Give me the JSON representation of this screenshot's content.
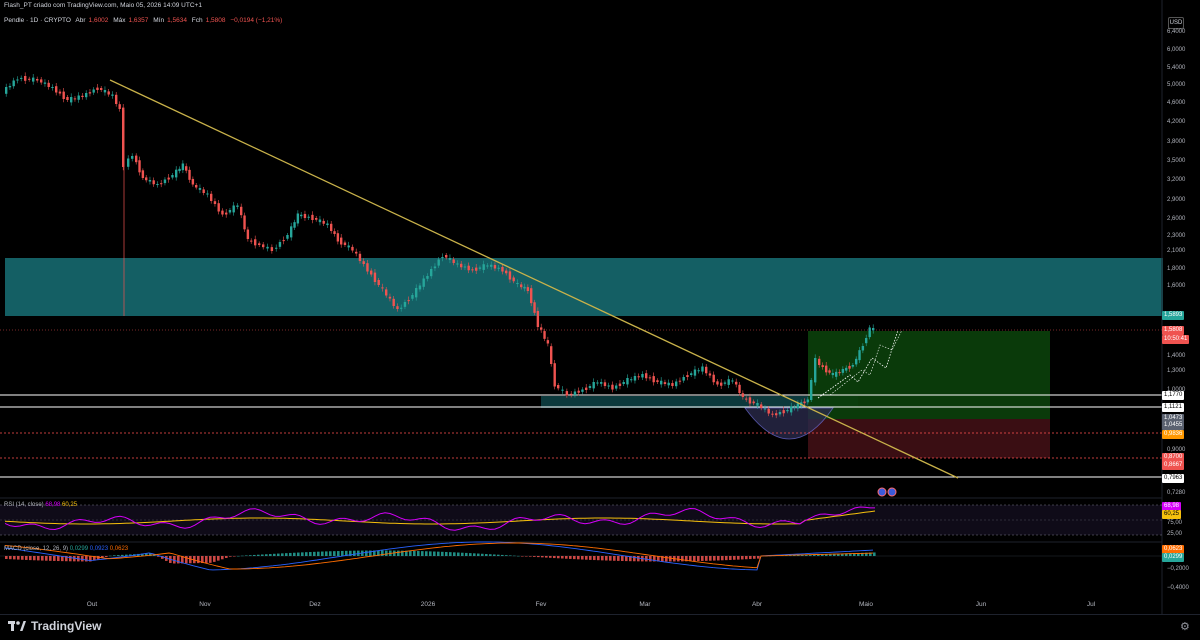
{
  "header": {
    "author_line": "Flash_PT criado com TradingView.com, Maio 05, 2026 14:09 UTC+1",
    "symbol": "Pendle · 1D · CRYPTO",
    "ohlc": [
      {
        "label": "Abr",
        "value": "1,6002"
      },
      {
        "label": "Máx",
        "value": "1,6357"
      },
      {
        "label": "Mín",
        "value": "1,5634"
      },
      {
        "label": "Fch",
        "value": "1,5808"
      }
    ],
    "change": "−0,0194 (−1,21%)",
    "currency": "USD"
  },
  "colors": {
    "up": "#26a69a",
    "down": "#ef5350",
    "trendline": "#c9b24a",
    "zone": "#1b7f86",
    "rsi": "#d500f9",
    "rsi_ma": "#f6c00d",
    "macd": "#2962ff",
    "signal": "#ff6d00"
  },
  "price_axis": [
    "6,4000",
    "6,0000",
    "5,4000",
    "5,0000",
    "4,6000",
    "4,2000",
    "3,8000",
    "3,5000",
    "3,2000",
    "2,9000",
    "2,6000",
    "2,3000",
    "2,1000",
    "1,8000",
    "1,6000",
    "1,4000",
    "1,3000",
    "1,0000",
    "0,9000",
    "0,7280"
  ],
  "price_labels": [
    {
      "name": "target-price-label",
      "value": "1,5893",
      "color": "#26a69a"
    },
    {
      "name": "last-price-label",
      "value": "1,5808",
      "color": "#ef5350"
    },
    {
      "name": "countdown-label",
      "value": "10:50:41",
      "color": "#ef5350"
    },
    {
      "name": "level-1-label",
      "value": "1,1770",
      "color": "#ffffff"
    },
    {
      "name": "level-2-label",
      "value": "1,1121",
      "color": "#ffffff"
    },
    {
      "name": "entry-price-label",
      "value": "1,0473",
      "color": "#5b6270"
    },
    {
      "name": "level-3-label",
      "value": "1,0455",
      "color": "#5b6270"
    },
    {
      "name": "support-price-label",
      "value": "0,9836",
      "color": "#ff9800"
    },
    {
      "name": "stop-price-label",
      "value": "0,8700",
      "color": "#ef5350"
    },
    {
      "name": "stop-2-price-label",
      "value": "0,8667",
      "color": "#ef5350"
    },
    {
      "name": "low-level-label",
      "value": "0,7963",
      "color": "#ffffff"
    }
  ],
  "time_axis": [
    "Out",
    "Nov",
    "Dez",
    "2026",
    "Fev",
    "Mar",
    "Abr",
    "Maio",
    "Jun",
    "Jul"
  ],
  "rsi": {
    "title": "RSI (14, close)",
    "value": "68,98",
    "ma_value": "60,25",
    "axis": [
      "75,00",
      "25,00"
    ]
  },
  "macd": {
    "title": "MACD (close, 12, 26, 9)",
    "hist": "0,0299",
    "macd": "0,0923",
    "signal": "0,0623",
    "axis": [
      "−0,2000",
      "−0,4000"
    ]
  },
  "footer": {
    "brand": "TradingView"
  }
}
